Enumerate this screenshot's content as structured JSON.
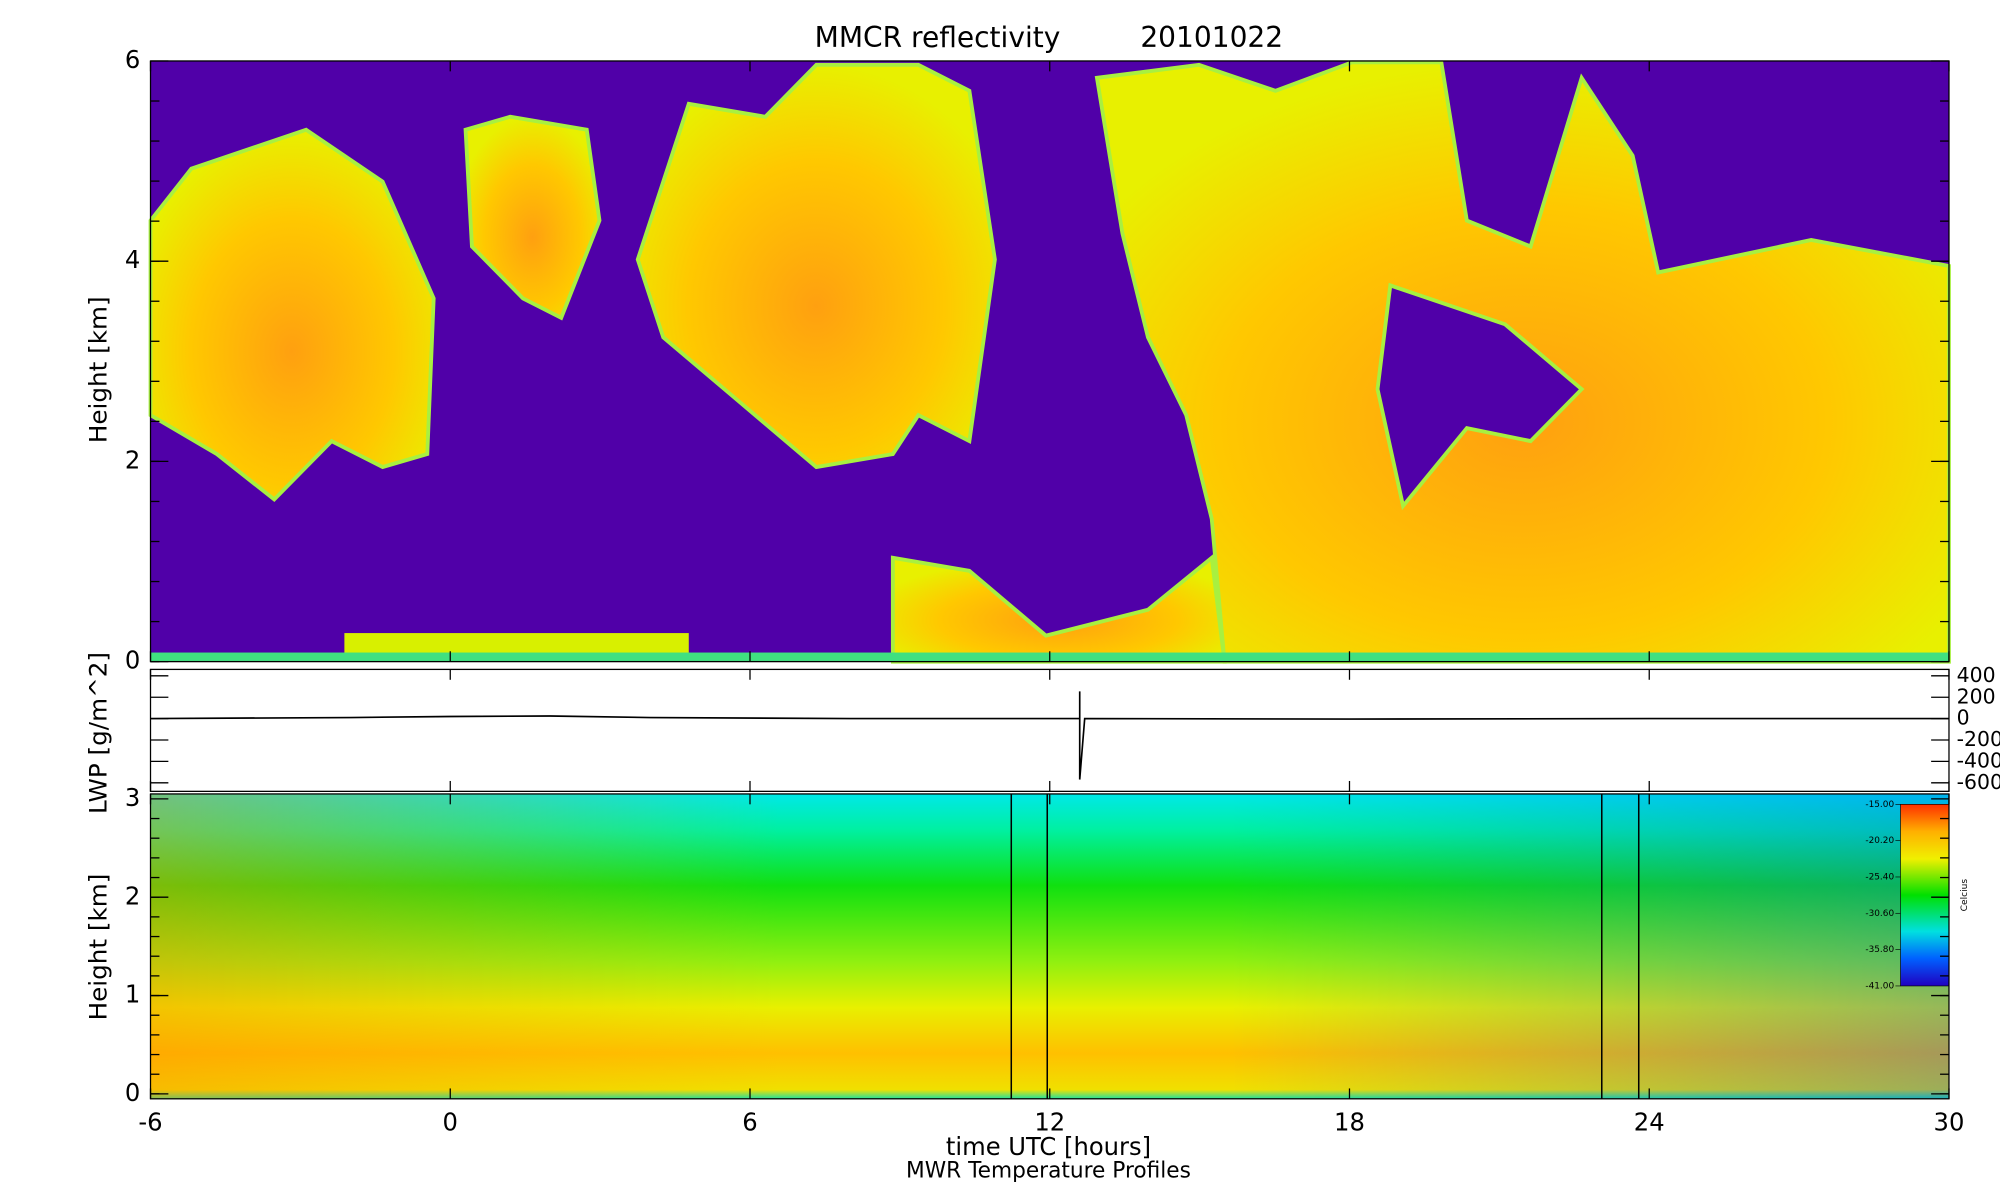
{
  "chart_data": [
    {
      "type": "heatmap",
      "title": "MMCR reflectivity",
      "date": "20101022",
      "ylabel": "Height [km]",
      "xlim": [
        -6,
        30
      ],
      "ylim": [
        0,
        6
      ],
      "yticks": [
        0,
        2,
        4,
        6
      ]
    },
    {
      "type": "line",
      "ylabel": "LWP [g/m^2]",
      "xlim": [
        -6,
        30
      ],
      "y2lim": [
        -680,
        460
      ],
      "y2ticks": [
        400,
        200,
        0,
        -200,
        -400,
        -600
      ],
      "series": [
        {
          "axis": "y2",
          "color": "#000000",
          "x": [
            -6,
            -2,
            0,
            2,
            4,
            8,
            12,
            12.6,
            12.6,
            12.6,
            12.7,
            18,
            24,
            30
          ],
          "values": [
            0,
            10,
            20,
            25,
            10,
            0,
            0,
            0,
            255,
            -570,
            0,
            -5,
            0,
            0
          ]
        }
      ]
    },
    {
      "type": "contour",
      "ylabel": "Height [km]",
      "xlabel": "time UTC [hours]",
      "footer": "MWR Temperature Profiles",
      "xlim": [
        -6,
        30
      ],
      "xticks": [
        -6,
        0,
        6,
        12,
        18,
        24,
        30
      ],
      "ylim": [
        -0.05,
        3.05
      ],
      "yticks": [
        0,
        1,
        2,
        3
      ],
      "gap_lines_x": [
        11.23,
        11.95,
        23.05,
        23.79
      ],
      "colorbar_label": "Celcius",
      "colorbar_lim": [
        -41,
        -15
      ],
      "colorbar_ticks": [
        {
          "value": -15,
          "label": "-15.00"
        },
        {
          "value": -20.2,
          "label": "-20.20"
        },
        {
          "value": -25.4,
          "label": "-25.40"
        },
        {
          "value": -30.6,
          "label": "-30.60"
        },
        {
          "value": -35.8,
          "label": "-35.80"
        },
        {
          "value": -41,
          "label": "-41.00"
        }
      ]
    }
  ]
}
